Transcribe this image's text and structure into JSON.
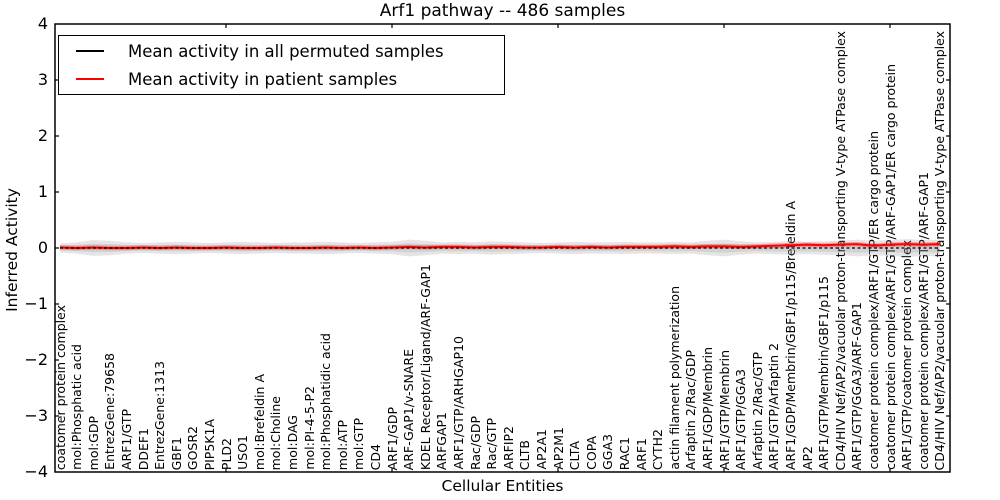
{
  "figure": {
    "title": "Arf1 pathway -- 486 samples"
  },
  "chart_data": {
    "type": "line",
    "title": "Arf1 pathway -- 486 samples",
    "xlabel": "Cellular Entities",
    "ylabel": "Inferred Activity",
    "ylim": [
      -4,
      4
    ],
    "ytick_labels": [
      "4",
      "3",
      "2",
      "1",
      "0",
      "−1",
      "−2",
      "−3",
      "−4"
    ],
    "grid": false,
    "legend_position": "upper left",
    "categories": [
      "coatomer protein complex",
      "mol:Phosphatic acid",
      "mol:GDP",
      "EntrezGene:79658",
      "ARF1/GTP",
      "DDEF1",
      "EntrezGene:1313",
      "GBF1",
      "GOSR2",
      "PIP5K1A",
      "PLD2",
      "USO1",
      "mol:Brefeldin A",
      "mol:Choline",
      "mol:DAG",
      "mol:PI-4-5-P2",
      "mol:Phosphatidic acid",
      "mol:ATP",
      "mol:GTP",
      "CD4",
      "ARF1/GDP",
      "ARF-GAP1/v-SNARE",
      "KDEL Receptor/Ligand/ARF-GAP1",
      "ARFGAP1",
      "ARF1/GTP/ARHGAP10",
      "Rac/GDP",
      "Rac/GTP",
      "ARFIP2",
      "CLTB",
      "AP2A1",
      "AP2M1",
      "CLTA",
      "COPA",
      "GGA3",
      "RAC1",
      "ARF1",
      "CYTH2",
      "actin filament polymerization",
      "Arfaptin 2/Rac/GDP",
      "ARF1/GDP/Membrin",
      "ARF1/GTP/Membrin",
      "ARF1/GTP/GGA3",
      "Arfaptin 2/Rac/GTP",
      "ARF1/GTP/Arfaptin 2",
      "ARF1/GDP/Membrin/GBF1/p115/Brefeldin A",
      "AP2",
      "ARF1/GTP/Membrin/GBF1/p115",
      "CD4/HIV Nef/AP2/vacuolar proton-transporting V-type ATPase complex",
      "ARF1/GTP/GGA3/ARF-GAP1",
      "coatomer protein complex/ARF1/GTP/ER cargo protein",
      "coatomer protein complex/ARF1/GTP/ARF-GAP1/ER cargo protein",
      "ARF1/GTP/coatomer protein complex",
      "coatomer protein complex/ARF1/GTP/ARF-GAP1",
      "CD4/HIV Nef/AP2/vacuolar proton-transporting V-type ATPase complex"
    ],
    "series": [
      {
        "name": "Mean activity in all permuted samples",
        "color": "#000000",
        "values": [
          0,
          0,
          0,
          0,
          0,
          0,
          0,
          0,
          0,
          0,
          0,
          0,
          0,
          0,
          0,
          0,
          0,
          0,
          0,
          0,
          0,
          0,
          0,
          0,
          0,
          0,
          0,
          0,
          0,
          0,
          0,
          0,
          0,
          0,
          0,
          0,
          0,
          0,
          0,
          0,
          0,
          0,
          0,
          0,
          0,
          0,
          0,
          0,
          0,
          0,
          0,
          0,
          0,
          0
        ]
      },
      {
        "name": "Mean activity in patient samples",
        "color": "#ff0000",
        "values": [
          0.01,
          0,
          0.01,
          0,
          0,
          0.01,
          0,
          0.01,
          0,
          0,
          0.01,
          0,
          0,
          0.01,
          0,
          0,
          0.01,
          0,
          0.01,
          0,
          0.01,
          0.02,
          0.01,
          0.02,
          0.02,
          0.01,
          0.02,
          0.02,
          0.01,
          0.01,
          0.02,
          0.01,
          0.02,
          0.01,
          0.02,
          0.02,
          0.02,
          0.03,
          0.02,
          0.03,
          0.03,
          0.02,
          0.03,
          0.04,
          0.05,
          0.06,
          0.05,
          0.06,
          0.07,
          0.04,
          0.06,
          0.07,
          0.06,
          0.07
        ]
      }
    ],
    "permuted_band": {
      "upper": [
        0.08,
        0.1,
        0.14,
        0.13,
        0.1,
        0.09,
        0.1,
        0.11,
        0.1,
        0.09,
        0.1,
        0.11,
        0.1,
        0.09,
        0.1,
        0.1,
        0.11,
        0.1,
        0.09,
        0.1,
        0.11,
        0.15,
        0.13,
        0.1,
        0.11,
        0.1,
        0.12,
        0.11,
        0.1,
        0.09,
        0.1,
        0.11,
        0.1,
        0.1,
        0.11,
        0.1,
        0.1,
        0.11,
        0.1,
        0.13,
        0.15,
        0.12,
        0.1,
        0.11,
        0.12,
        0.11,
        0.12,
        0.13,
        0.15,
        0.13,
        0.14,
        0.16,
        0.14,
        0.15
      ],
      "symmetric": true,
      "color": "#888888"
    },
    "patient_band": {
      "halfwidth": 0.04,
      "color": "#ff0000"
    }
  }
}
